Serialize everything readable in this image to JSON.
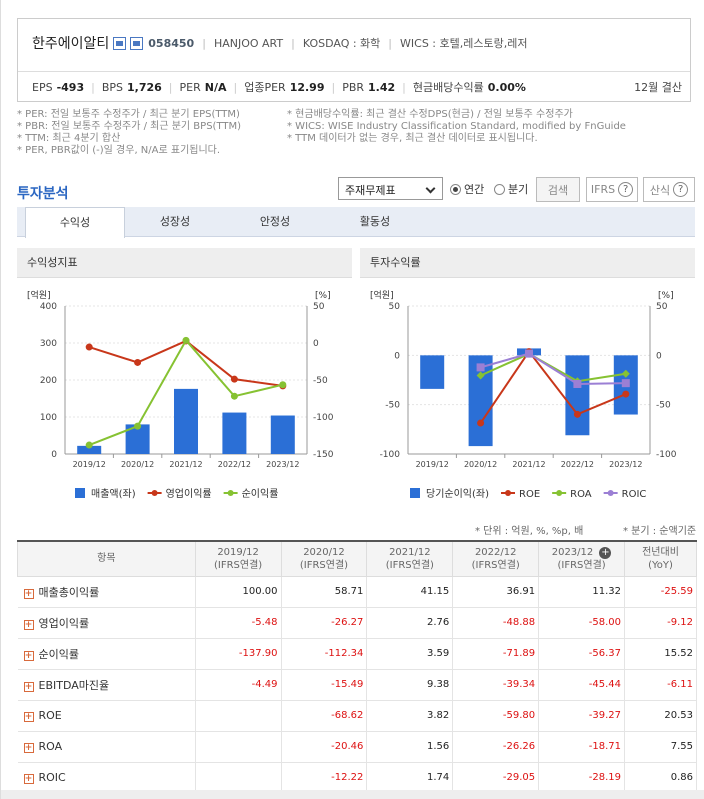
{
  "header": {
    "corp_name": "한주에이알티",
    "code": "058450",
    "eng_name": "HANJOO ART",
    "market": "KOSDAQ : 화학",
    "wics": "WICS : 호텔,레스토랑,레저",
    "eps_label": "EPS",
    "eps": "-493",
    "bps_label": "BPS",
    "bps": "1,726",
    "per_label": "PER",
    "per": "N/A",
    "ind_per_label": "업종PER",
    "ind_per": "12.99",
    "pbr_label": "PBR",
    "pbr": "1.42",
    "div_label": "현금배당수익률",
    "div": "0.00%",
    "fiscal": "12월 결산"
  },
  "notes": {
    "c1": [
      "* PER: 전일 보통주 수정주가 / 최근 분기 EPS(TTM)",
      "* PBR: 전일 보통주 수정주가 / 최근 분기 BPS(TTM)",
      "* TTM: 최근 4분기 합산",
      "* PER, PBR값이 (-)일 경우, N/A로 표기됩니다."
    ],
    "c2": [
      "* 현금배당수익률: 최근 결산 수정DPS(현금) / 전일 보통주 수정주가",
      "* WICS: WISE Industry Classification Standard, modified by FnGuide",
      "* TTM 데이터가 없는 경우, 최근 결산 데이터로 표시됩니다."
    ]
  },
  "section": {
    "title": "투자분석",
    "select": "주재무제표",
    "annual": "연간",
    "quarter": "분기",
    "search": "검색",
    "ifrs": "IFRS",
    "help": "산식"
  },
  "tabs": [
    "수익성",
    "성장성",
    "안정성",
    "활동성"
  ],
  "chart1": {
    "title": "수익성지표",
    "left_unit": "[억원]",
    "right_unit": "[%]",
    "left_ticks": [
      "400",
      "300",
      "200",
      "100",
      "0"
    ],
    "right_ticks": [
      "50",
      "0",
      "-50",
      "-100",
      "-150"
    ],
    "legend": [
      "매출액(좌)",
      "영업이익률",
      "순이익률"
    ]
  },
  "chart2": {
    "title": "투자수익률",
    "left_unit": "[억원]",
    "right_unit": "[%]",
    "left_ticks": [
      "50",
      "0",
      "-50",
      "-100"
    ],
    "right_ticks": [
      "50",
      "0",
      "-50",
      "-100"
    ],
    "legend": [
      "당기순이익(좌)",
      "ROE",
      "ROA",
      "ROIC"
    ]
  },
  "chart_data": [
    {
      "type": "bar",
      "title": "수익성지표",
      "categories": [
        "2019/12",
        "2020/12",
        "2021/12",
        "2022/12",
        "2023/12"
      ],
      "ylim": [
        0,
        400
      ],
      "y2lim": [
        -150,
        50
      ],
      "series": [
        {
          "name": "매출액(좌)",
          "axis": "left",
          "values": [
            22,
            80,
            176,
            112,
            104
          ],
          "color": "#2b6fd6"
        },
        {
          "name": "영업이익률",
          "axis": "right",
          "type": "line",
          "values": [
            -5.48,
            -26.27,
            2.76,
            -48.88,
            -58.0
          ],
          "color": "#c8371a"
        },
        {
          "name": "순이익률",
          "axis": "right",
          "type": "line",
          "values": [
            -137.9,
            -112.34,
            3.59,
            -71.89,
            -56.37
          ],
          "color": "#86c232"
        }
      ]
    },
    {
      "type": "bar",
      "title": "투자수익률",
      "categories": [
        "2019/12",
        "2020/12",
        "2021/12",
        "2022/12",
        "2023/12"
      ],
      "ylim": [
        -100,
        50
      ],
      "y2lim": [
        -100,
        50
      ],
      "series": [
        {
          "name": "당기순이익(좌)",
          "axis": "left",
          "values": [
            -34,
            -92,
            7,
            -81,
            -60
          ],
          "color": "#2b6fd6"
        },
        {
          "name": "ROE",
          "axis": "right",
          "type": "line",
          "values": [
            null,
            -68.62,
            3.82,
            -59.8,
            -39.27
          ],
          "color": "#c8371a"
        },
        {
          "name": "ROA",
          "axis": "right",
          "type": "line",
          "values": [
            null,
            -20.46,
            1.56,
            -26.26,
            -18.71
          ],
          "color": "#86c232"
        },
        {
          "name": "ROIC",
          "axis": "right",
          "type": "line",
          "values": [
            null,
            -12.22,
            1.74,
            -29.05,
            -28.19
          ],
          "color": "#9b7fd4"
        }
      ]
    }
  ],
  "table": {
    "unit_note": "* 단위 : 억원, %, %p, 배",
    "quarter_note": "* 분기 : 순액기준",
    "col0": "항목",
    "headers": [
      [
        "2019/12",
        "(IFRS연결)"
      ],
      [
        "2020/12",
        "(IFRS연결)"
      ],
      [
        "2021/12",
        "(IFRS연결)"
      ],
      [
        "2022/12",
        "(IFRS연결)"
      ],
      [
        "2023/12",
        "(IFRS연결)"
      ],
      [
        "전년대비",
        "(YoY)"
      ]
    ],
    "rows": [
      {
        "label": "매출총이익률",
        "vals": [
          "100.00",
          "58.71",
          "41.15",
          "36.91",
          "11.32",
          "-25.59"
        ]
      },
      {
        "label": "영업이익률",
        "vals": [
          "-5.48",
          "-26.27",
          "2.76",
          "-48.88",
          "-58.00",
          "-9.12"
        ]
      },
      {
        "label": "순이익률",
        "vals": [
          "-137.90",
          "-112.34",
          "3.59",
          "-71.89",
          "-56.37",
          "15.52"
        ]
      },
      {
        "label": "EBITDA마진율",
        "vals": [
          "-4.49",
          "-15.49",
          "9.38",
          "-39.34",
          "-45.44",
          "-6.11"
        ]
      },
      {
        "label": "ROE",
        "vals": [
          "",
          "-68.62",
          "3.82",
          "-59.80",
          "-39.27",
          "20.53"
        ]
      },
      {
        "label": "ROA",
        "vals": [
          "",
          "-20.46",
          "1.56",
          "-26.26",
          "-18.71",
          "7.55"
        ]
      },
      {
        "label": "ROIC",
        "vals": [
          "",
          "-12.22",
          "1.74",
          "-29.05",
          "-28.19",
          "0.86"
        ]
      }
    ]
  }
}
